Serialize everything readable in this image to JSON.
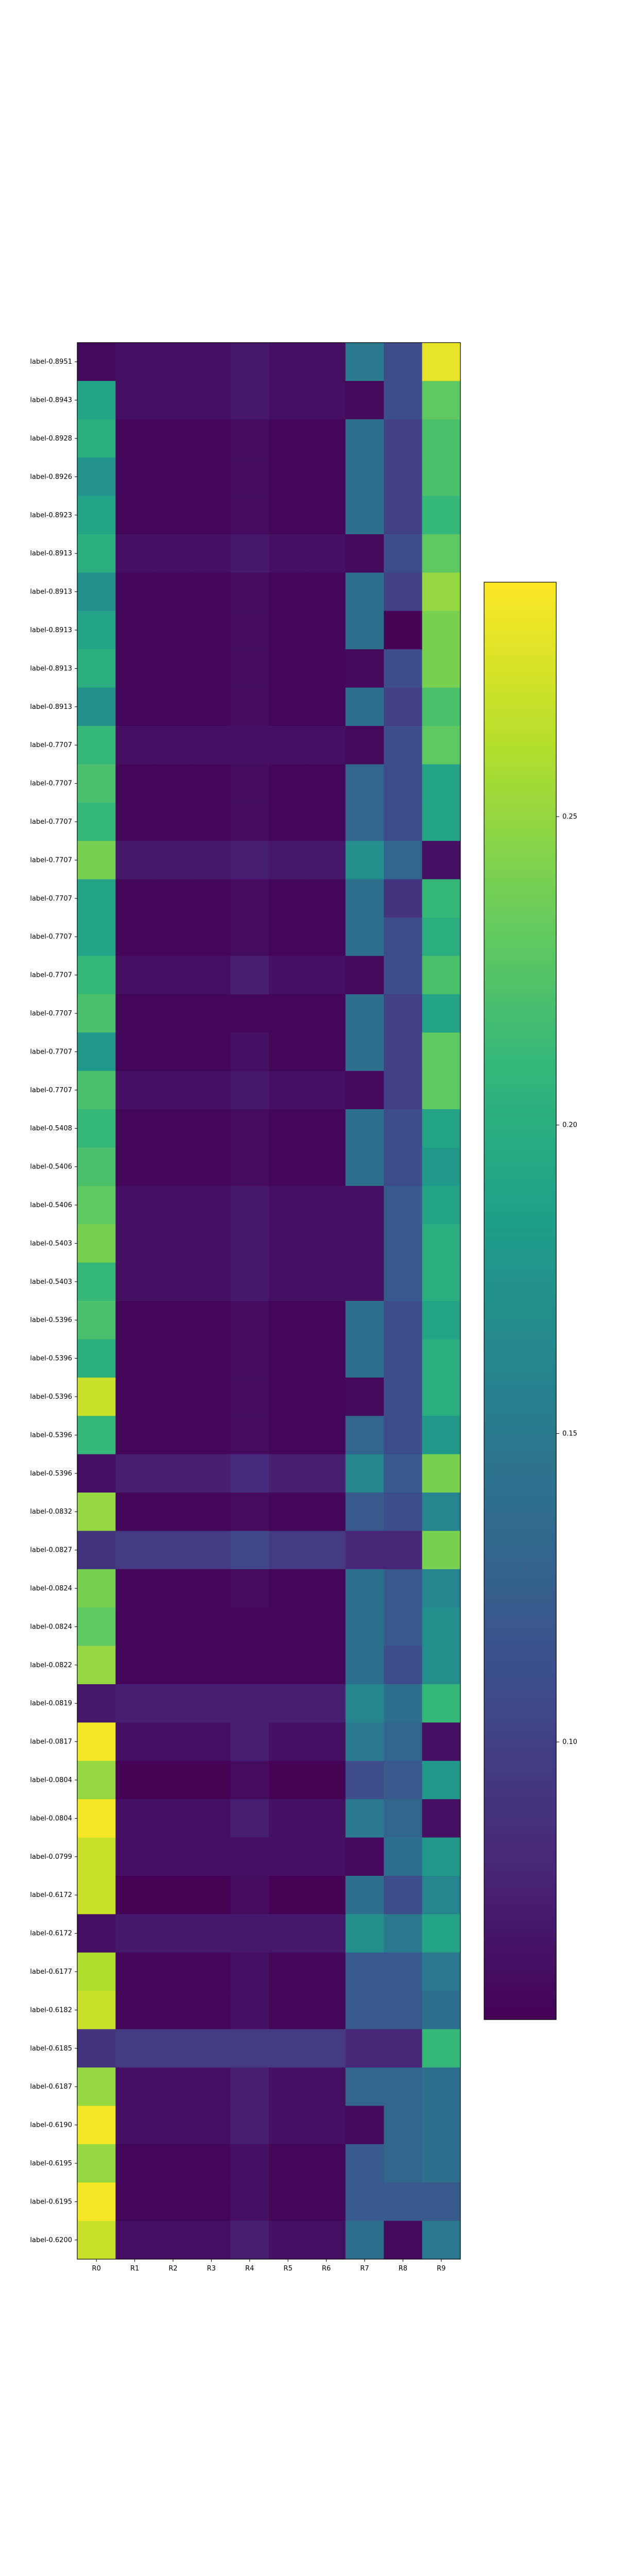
{
  "chart_data": {
    "type": "heatmap",
    "title": "",
    "xlabel": "",
    "ylabel": "",
    "x_categories": [
      "R0",
      "R1",
      "R2",
      "R3",
      "R4",
      "R5",
      "R6",
      "R7",
      "R8",
      "R9"
    ],
    "y_categories": [
      "label-0.8951",
      "label-0.8943",
      "label-0.8928",
      "label-0.8926",
      "label-0.8923",
      "label-0.8913",
      "label-0.8913",
      "label-0.8913",
      "label-0.8913",
      "label-0.8913",
      "label-0.7707",
      "label-0.7707",
      "label-0.7707",
      "label-0.7707",
      "label-0.7707",
      "label-0.7707",
      "label-0.7707",
      "label-0.7707",
      "label-0.7707",
      "label-0.7707",
      "label-0.5408",
      "label-0.5406",
      "label-0.5406",
      "label-0.5403",
      "label-0.5403",
      "label-0.5396",
      "label-0.5396",
      "label-0.5396",
      "label-0.5396",
      "label-0.5396",
      "label-0.0832",
      "label-0.0827",
      "label-0.0824",
      "label-0.0824",
      "label-0.0822",
      "label-0.0819",
      "label-0.0817",
      "label-0.0804",
      "label-0.0804",
      "label-0.0799",
      "label-0.6172",
      "label-0.6172",
      "label-0.6177",
      "label-0.6182",
      "label-0.6185",
      "label-0.6187",
      "label-0.6190",
      "label-0.6195",
      "label-0.6195",
      "label-0.6200"
    ],
    "colormap": "viridis",
    "colorbar": {
      "range": [
        0.055,
        0.288
      ],
      "ticks": [
        0.1,
        0.15,
        0.2,
        0.25
      ],
      "tick_labels": [
        "0.10",
        "0.15",
        "0.20",
        "0.25"
      ]
    },
    "values": [
      [
        0.06,
        0.065,
        0.065,
        0.065,
        0.07,
        0.065,
        0.065,
        0.15,
        0.11,
        0.28
      ],
      [
        0.19,
        0.065,
        0.065,
        0.065,
        0.07,
        0.065,
        0.065,
        0.06,
        0.11,
        0.23
      ],
      [
        0.2,
        0.058,
        0.058,
        0.058,
        0.062,
        0.058,
        0.058,
        0.14,
        0.1,
        0.22
      ],
      [
        0.175,
        0.058,
        0.058,
        0.058,
        0.062,
        0.058,
        0.058,
        0.14,
        0.1,
        0.22
      ],
      [
        0.19,
        0.058,
        0.058,
        0.058,
        0.062,
        0.058,
        0.058,
        0.14,
        0.1,
        0.21
      ],
      [
        0.2,
        0.065,
        0.065,
        0.065,
        0.07,
        0.065,
        0.065,
        0.06,
        0.11,
        0.23
      ],
      [
        0.17,
        0.058,
        0.058,
        0.058,
        0.062,
        0.058,
        0.058,
        0.14,
        0.1,
        0.25
      ],
      [
        0.19,
        0.058,
        0.058,
        0.058,
        0.062,
        0.058,
        0.058,
        0.14,
        0.056,
        0.24
      ],
      [
        0.2,
        0.058,
        0.058,
        0.058,
        0.062,
        0.058,
        0.058,
        0.06,
        0.11,
        0.24
      ],
      [
        0.17,
        0.058,
        0.058,
        0.058,
        0.062,
        0.058,
        0.058,
        0.14,
        0.1,
        0.22
      ],
      [
        0.21,
        0.065,
        0.065,
        0.065,
        0.065,
        0.065,
        0.065,
        0.06,
        0.11,
        0.23
      ],
      [
        0.22,
        0.058,
        0.058,
        0.058,
        0.062,
        0.058,
        0.058,
        0.13,
        0.11,
        0.19
      ],
      [
        0.21,
        0.058,
        0.058,
        0.058,
        0.062,
        0.058,
        0.058,
        0.13,
        0.11,
        0.19
      ],
      [
        0.24,
        0.07,
        0.07,
        0.07,
        0.075,
        0.07,
        0.07,
        0.17,
        0.13,
        0.065
      ],
      [
        0.19,
        0.058,
        0.058,
        0.058,
        0.062,
        0.058,
        0.058,
        0.14,
        0.09,
        0.21
      ],
      [
        0.19,
        0.058,
        0.058,
        0.058,
        0.062,
        0.058,
        0.058,
        0.14,
        0.11,
        0.2
      ],
      [
        0.21,
        0.065,
        0.065,
        0.065,
        0.075,
        0.065,
        0.065,
        0.06,
        0.11,
        0.22
      ],
      [
        0.22,
        0.058,
        0.058,
        0.058,
        0.058,
        0.058,
        0.058,
        0.14,
        0.1,
        0.19
      ],
      [
        0.18,
        0.058,
        0.058,
        0.058,
        0.065,
        0.058,
        0.058,
        0.14,
        0.1,
        0.23
      ],
      [
        0.22,
        0.065,
        0.065,
        0.065,
        0.07,
        0.065,
        0.065,
        0.06,
        0.1,
        0.23
      ],
      [
        0.21,
        0.058,
        0.058,
        0.058,
        0.062,
        0.058,
        0.058,
        0.14,
        0.11,
        0.19
      ],
      [
        0.22,
        0.058,
        0.058,
        0.058,
        0.062,
        0.058,
        0.058,
        0.14,
        0.11,
        0.18
      ],
      [
        0.23,
        0.065,
        0.065,
        0.065,
        0.07,
        0.065,
        0.065,
        0.065,
        0.12,
        0.19
      ],
      [
        0.24,
        0.065,
        0.065,
        0.065,
        0.07,
        0.065,
        0.065,
        0.065,
        0.12,
        0.2
      ],
      [
        0.21,
        0.065,
        0.065,
        0.065,
        0.07,
        0.065,
        0.065,
        0.065,
        0.12,
        0.2
      ],
      [
        0.22,
        0.058,
        0.058,
        0.058,
        0.062,
        0.058,
        0.058,
        0.14,
        0.11,
        0.19
      ],
      [
        0.2,
        0.058,
        0.058,
        0.058,
        0.062,
        0.058,
        0.058,
        0.14,
        0.11,
        0.2
      ],
      [
        0.27,
        0.058,
        0.058,
        0.058,
        0.062,
        0.058,
        0.058,
        0.06,
        0.11,
        0.2
      ],
      [
        0.21,
        0.058,
        0.058,
        0.058,
        0.062,
        0.058,
        0.058,
        0.13,
        0.11,
        0.18
      ],
      [
        0.065,
        0.075,
        0.075,
        0.075,
        0.085,
        0.075,
        0.075,
        0.16,
        0.12,
        0.24
      ],
      [
        0.25,
        0.058,
        0.058,
        0.058,
        0.062,
        0.058,
        0.058,
        0.12,
        0.11,
        0.16
      ],
      [
        0.09,
        0.095,
        0.095,
        0.095,
        0.105,
        0.095,
        0.095,
        0.08,
        0.08,
        0.24
      ],
      [
        0.24,
        0.058,
        0.058,
        0.058,
        0.062,
        0.058,
        0.058,
        0.14,
        0.12,
        0.16
      ],
      [
        0.23,
        0.058,
        0.058,
        0.058,
        0.058,
        0.058,
        0.058,
        0.14,
        0.12,
        0.17
      ],
      [
        0.25,
        0.058,
        0.058,
        0.058,
        0.058,
        0.058,
        0.058,
        0.14,
        0.11,
        0.17
      ],
      [
        0.07,
        0.075,
        0.075,
        0.075,
        0.075,
        0.075,
        0.075,
        0.16,
        0.14,
        0.21
      ],
      [
        0.285,
        0.065,
        0.065,
        0.065,
        0.075,
        0.065,
        0.065,
        0.15,
        0.13,
        0.065
      ],
      [
        0.25,
        0.056,
        0.056,
        0.056,
        0.062,
        0.056,
        0.056,
        0.11,
        0.12,
        0.18
      ],
      [
        0.285,
        0.065,
        0.065,
        0.065,
        0.075,
        0.065,
        0.065,
        0.15,
        0.13,
        0.065
      ],
      [
        0.27,
        0.065,
        0.065,
        0.065,
        0.065,
        0.065,
        0.065,
        0.06,
        0.14,
        0.18
      ],
      [
        0.27,
        0.056,
        0.056,
        0.056,
        0.062,
        0.056,
        0.056,
        0.14,
        0.11,
        0.16
      ],
      [
        0.065,
        0.07,
        0.07,
        0.07,
        0.07,
        0.07,
        0.07,
        0.17,
        0.15,
        0.19
      ],
      [
        0.26,
        0.058,
        0.058,
        0.058,
        0.065,
        0.058,
        0.058,
        0.12,
        0.12,
        0.15
      ],
      [
        0.27,
        0.058,
        0.058,
        0.058,
        0.065,
        0.058,
        0.058,
        0.12,
        0.12,
        0.14
      ],
      [
        0.09,
        0.095,
        0.095,
        0.095,
        0.095,
        0.095,
        0.095,
        0.08,
        0.08,
        0.21
      ],
      [
        0.25,
        0.065,
        0.065,
        0.065,
        0.075,
        0.065,
        0.065,
        0.13,
        0.13,
        0.14
      ],
      [
        0.285,
        0.065,
        0.065,
        0.065,
        0.075,
        0.065,
        0.065,
        0.06,
        0.13,
        0.14
      ],
      [
        0.25,
        0.058,
        0.058,
        0.058,
        0.065,
        0.058,
        0.058,
        0.12,
        0.13,
        0.14
      ],
      [
        0.285,
        0.058,
        0.058,
        0.058,
        0.065,
        0.058,
        0.058,
        0.12,
        0.12,
        0.12
      ],
      [
        0.27,
        0.065,
        0.065,
        0.065,
        0.075,
        0.065,
        0.065,
        0.14,
        0.06,
        0.15
      ]
    ]
  }
}
